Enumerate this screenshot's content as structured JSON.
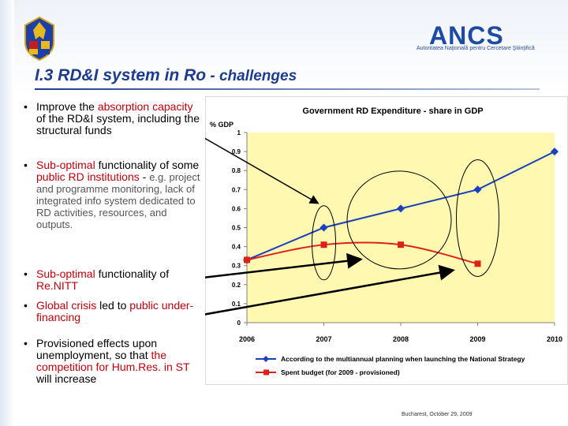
{
  "title": {
    "main": "I.3 RD&I system in Ro",
    "sub": " - challenges"
  },
  "logo": {
    "text": "ANCS",
    "subtitle": "Autoritatea Naţională pentru Cercetare Ştiinţifică"
  },
  "bullets": [
    [
      {
        "t": "Improve the ",
        "c": "black"
      },
      {
        "t": "absorption capacity",
        "c": "red"
      },
      {
        "t": " of the RD&I system, including the structural funds",
        "c": "black"
      }
    ],
    [
      {
        "t": "Sub-optimal",
        "c": "red"
      },
      {
        "t": " functionality of some ",
        "c": "black"
      },
      {
        "t": "public RD institutions",
        "c": "red"
      },
      {
        "t": " - ",
        "c": "black"
      },
      {
        "t": "e.g. project and programme monitoring, lack of integrated info system dedicated to RD activities, resources, and outputs.",
        "c": "gray"
      }
    ],
    [
      {
        "t": "Sub-optimal",
        "c": "red"
      },
      {
        "t": " functionality of ",
        "c": "black"
      },
      {
        "t": "Re.NITT",
        "c": "red"
      }
    ],
    [
      {
        "t": "Global crisis",
        "c": "red"
      },
      {
        "t": " led to ",
        "c": "black"
      },
      {
        "t": "public under-financing",
        "c": "red"
      }
    ],
    [
      {
        "t": "Provisioned effects upon unemployment, so that ",
        "c": "black"
      },
      {
        "t": "the competition for Hum.Res. in ST",
        "c": "red"
      },
      {
        "t": " will increase",
        "c": "black"
      }
    ]
  ],
  "footer": "Bucharest, October 29, 2009",
  "colors": {
    "plot_bg": "#fff8b0",
    "series_blue": "#1a3fbf",
    "series_red": "#e0201b",
    "title_blue": "#1d3c8f",
    "accent_red": "#c0000b"
  },
  "chart_data": {
    "type": "line",
    "title": "Government RD Expenditure - share in GDP",
    "ylabel": "% GDP",
    "xlabel": "",
    "categories": [
      "2006",
      "2007",
      "2008",
      "2009",
      "2010"
    ],
    "ylim": [
      0,
      1
    ],
    "yticks": [
      "0",
      "0.1",
      "0.2",
      "0.3",
      "0.4",
      "0.5",
      "0.6",
      "0.7",
      "0.8",
      "0.9",
      "1"
    ],
    "grid": false,
    "legend": "bottom",
    "series": [
      {
        "name": "According to the multiannual planning when launching the National Strategy",
        "values": [
          0.33,
          0.5,
          0.6,
          0.7,
          0.9
        ],
        "color": "#1a3fbf",
        "marker": "diamond"
      },
      {
        "name": "Spent budget (for 2009 - provisioned)",
        "values": [
          0.33,
          0.41,
          0.41,
          0.31,
          null
        ],
        "color": "#e0201b",
        "marker": "square"
      }
    ]
  }
}
